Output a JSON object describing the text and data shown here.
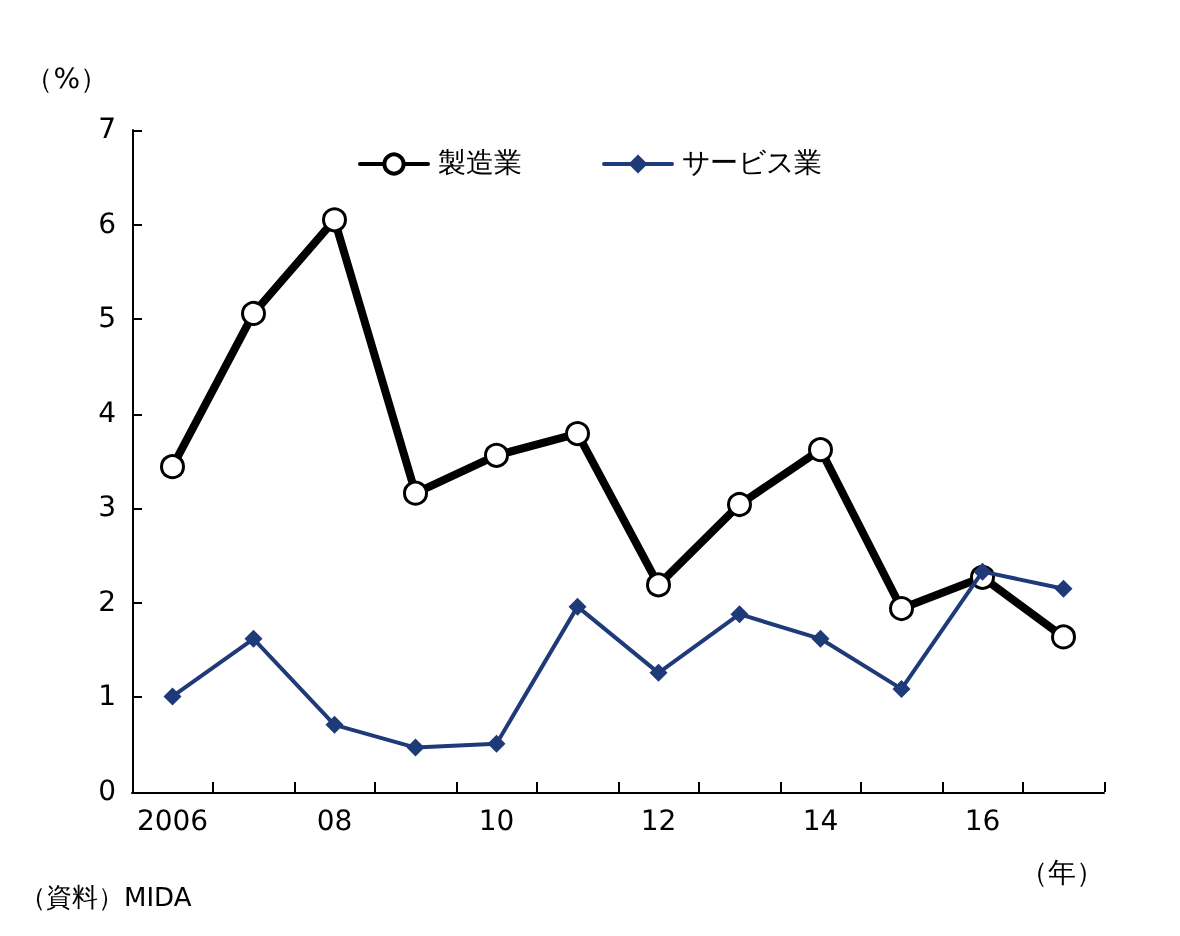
{
  "chart_data": {
    "type": "line",
    "ylabel": "（%）",
    "xlabel": "（年）",
    "annotations": [
      "（資料）MIDA"
    ],
    "categories": [
      "2006",
      null,
      "08",
      null,
      "10",
      null,
      "12",
      null,
      "14",
      null,
      "16",
      null
    ],
    "series": [
      {
        "name": "製造業",
        "color": "#000000",
        "marker": "circle",
        "values": [
          3.44,
          5.06,
          6.05,
          3.16,
          3.56,
          3.79,
          2.19,
          3.04,
          3.62,
          1.94,
          2.27,
          1.64
        ]
      },
      {
        "name": "サービス業",
        "color": "#1f3a78",
        "marker": "diamond",
        "values": [
          1.01,
          1.62,
          0.71,
          0.47,
          0.51,
          1.96,
          1.26,
          1.88,
          1.62,
          1.09,
          2.33,
          2.15
        ]
      }
    ],
    "ylim": [
      0,
      7
    ],
    "yticks": [
      0,
      1,
      2,
      3,
      4,
      5,
      6,
      7
    ],
    "grid": false,
    "legend": "top"
  }
}
